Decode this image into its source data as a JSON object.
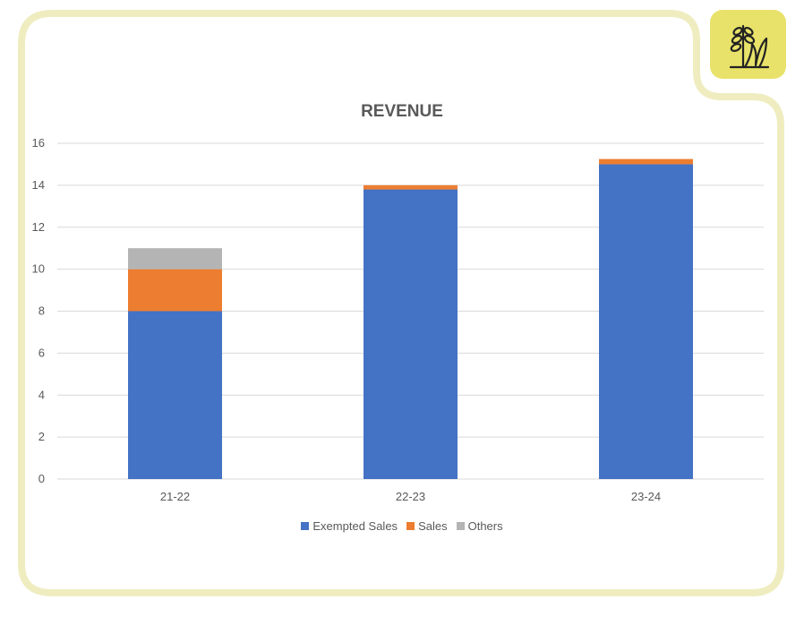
{
  "chart_data": {
    "type": "bar",
    "stacked": true,
    "title": "REVENUE",
    "categories": [
      "21-22",
      "22-23",
      "23-24"
    ],
    "series": [
      {
        "name": "Exempted Sales",
        "values": [
          8,
          13.8,
          15.0
        ],
        "color": "#4472c4"
      },
      {
        "name": "Sales",
        "values": [
          2,
          0.2,
          0.25
        ],
        "color": "#ed7d31"
      },
      {
        "name": "Others",
        "values": [
          1,
          0,
          0
        ],
        "color": "#b4b4b4"
      }
    ],
    "yticks": [
      "0",
      "2",
      "4",
      "6",
      "8",
      "10",
      "12",
      "14",
      "16"
    ],
    "ylim": [
      0,
      16
    ],
    "grid": true,
    "legend_position": "bottom"
  },
  "theme": {
    "frame_color": "#efedc0",
    "badge_color": "#e8e26a",
    "grid_color": "#d9d9d9",
    "text_color": "#595959"
  },
  "badge": {
    "icon": "wheat-leaf-icon"
  }
}
